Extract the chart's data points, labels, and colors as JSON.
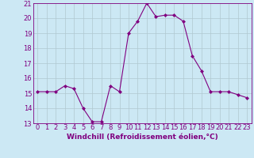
{
  "x": [
    0,
    1,
    2,
    3,
    4,
    5,
    6,
    7,
    8,
    9,
    10,
    11,
    12,
    13,
    14,
    15,
    16,
    17,
    18,
    19,
    20,
    21,
    22,
    23
  ],
  "y": [
    15.1,
    15.1,
    15.1,
    15.5,
    15.3,
    14.0,
    13.1,
    13.1,
    15.5,
    15.1,
    19.0,
    19.8,
    21.0,
    20.1,
    20.2,
    20.2,
    19.8,
    17.5,
    16.5,
    15.1,
    15.1,
    15.1,
    14.9,
    14.7
  ],
  "xlabel": "Windchill (Refroidissement éolien,°C)",
  "ylim": [
    13,
    21
  ],
  "xlim_min": -0.5,
  "xlim_max": 23.5,
  "yticks": [
    13,
    14,
    15,
    16,
    17,
    18,
    19,
    20,
    21
  ],
  "xticks": [
    0,
    1,
    2,
    3,
    4,
    5,
    6,
    7,
    8,
    9,
    10,
    11,
    12,
    13,
    14,
    15,
    16,
    17,
    18,
    19,
    20,
    21,
    22,
    23
  ],
  "line_color": "#800080",
  "marker": "D",
  "marker_size": 2.0,
  "bg_color": "#cce8f4",
  "grid_color": "#b0c8d0",
  "xlabel_fontsize": 6.5,
  "tick_fontsize": 6.0,
  "linewidth": 0.8
}
